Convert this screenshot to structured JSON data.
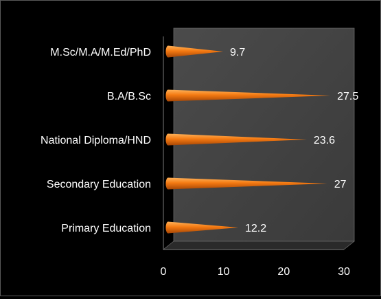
{
  "chart_data": {
    "type": "bar",
    "orientation": "horizontal",
    "style": "3d-cone",
    "categories": [
      "M.Sc/M.A/M.Ed/PhD",
      "B.A/B.Sc",
      "National Diploma/HND",
      "Secondary Education",
      "Primary Education"
    ],
    "values": [
      9.7,
      27.5,
      23.6,
      27,
      12.2
    ],
    "value_labels": [
      "9.7",
      "27.5",
      "23.6",
      "27",
      "12.2"
    ],
    "xlim": [
      0,
      30
    ],
    "xticks": [
      "0",
      "10",
      "20",
      "30"
    ],
    "grid": false,
    "legend": "none",
    "title": "",
    "xlabel": "",
    "ylabel": "",
    "colors": {
      "background": "#000000",
      "plot_wall": "#3a3a3a",
      "plot_wall_top": "#4b4b4b",
      "plot_floor": "#2a2a2a",
      "bar_light": "#ffb25a",
      "bar_mid": "#f47a12",
      "bar_dark": "#a84706",
      "text": "#ffffff"
    }
  }
}
